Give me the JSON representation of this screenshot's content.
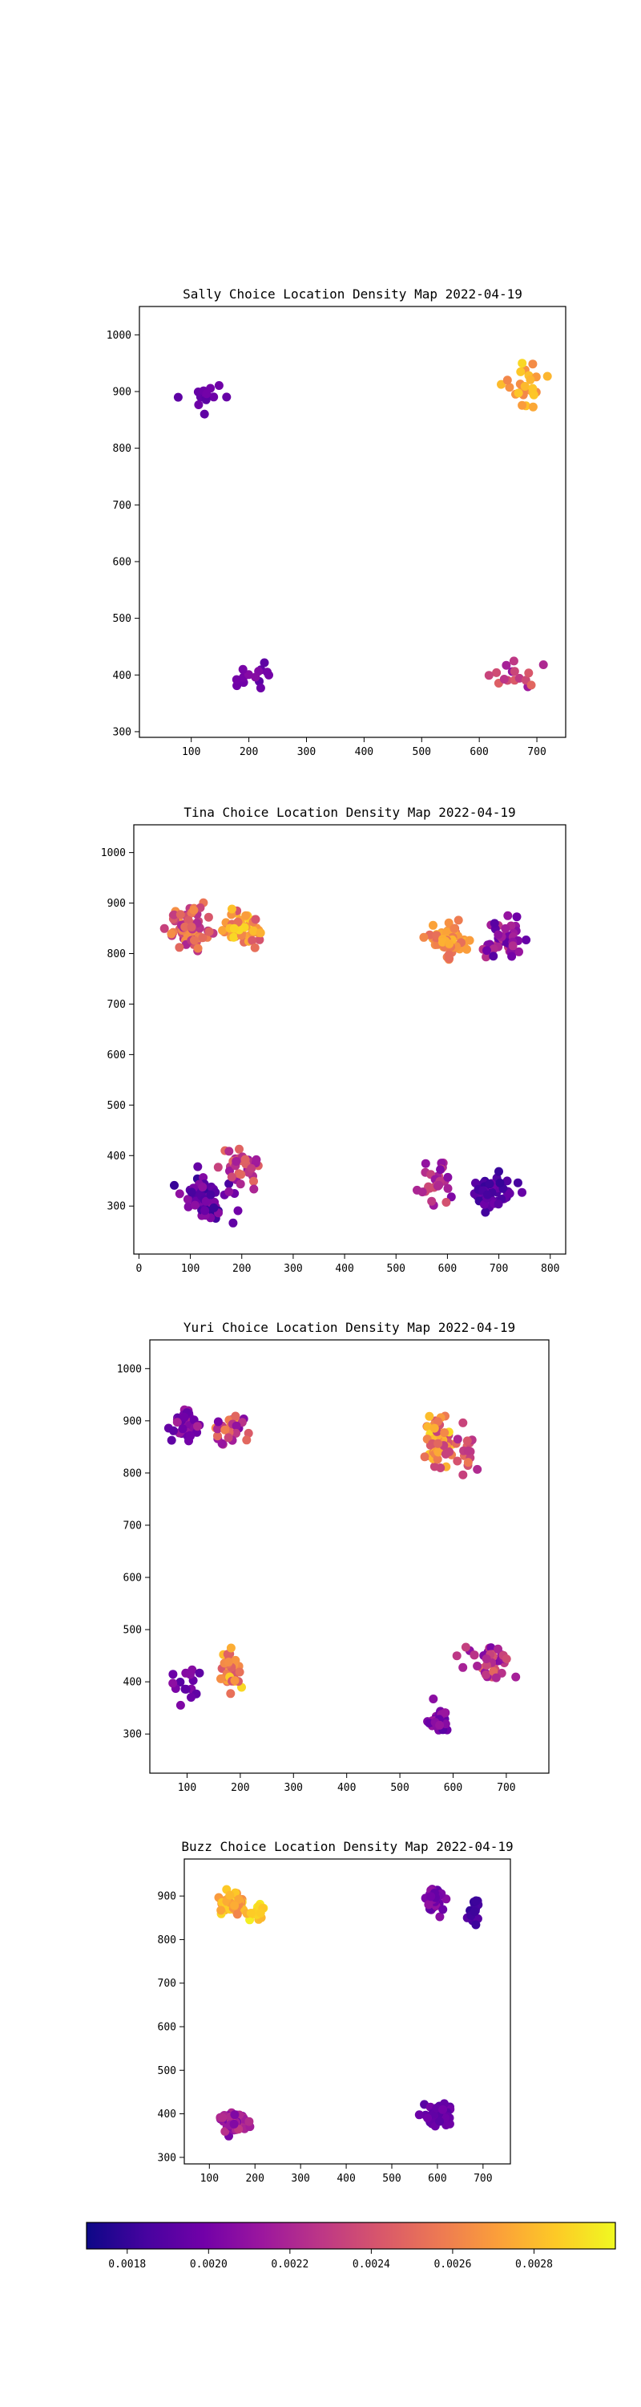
{
  "colors": {
    "colormap": "plasma",
    "stops": [
      "#0d0887",
      "#46039f",
      "#7201a8",
      "#9c179e",
      "#bd3786",
      "#d8576b",
      "#ed7953",
      "#fb9f3a",
      "#fdca26",
      "#f0f921"
    ]
  },
  "colorbar": {
    "range": [
      0.0017,
      0.003
    ],
    "ticks": [
      0.0018,
      0.002,
      0.0022,
      0.0024,
      0.0026,
      0.0028
    ],
    "tick_labels": [
      "0.0018",
      "0.0020",
      "0.0022",
      "0.0024",
      "0.0026",
      "0.0028"
    ]
  },
  "chart_data": [
    {
      "type": "scatter",
      "title": "Sally Choice Location Density Map 2022-04-19",
      "xlim": [
        10,
        750
      ],
      "ylim": [
        290,
        1050
      ],
      "xticks": [
        100,
        200,
        300,
        400,
        500,
        600,
        700
      ],
      "yticks": [
        300,
        400,
        500,
        600,
        700,
        800,
        900,
        1000
      ],
      "clusters": [
        {
          "cx": 120,
          "cy": 895,
          "sx": 45,
          "sy": 35,
          "n": 16,
          "c0": 0.0019,
          "c1": 0.002
        },
        {
          "cx": 680,
          "cy": 910,
          "sx": 35,
          "sy": 35,
          "n": 26,
          "c0": 0.0026,
          "c1": 0.0029
        },
        {
          "cx": 200,
          "cy": 395,
          "sx": 40,
          "sy": 30,
          "n": 14,
          "c0": 0.0019,
          "c1": 0.0021
        },
        {
          "cx": 670,
          "cy": 400,
          "sx": 40,
          "sy": 35,
          "n": 16,
          "c0": 0.0021,
          "c1": 0.0025
        }
      ]
    },
    {
      "type": "scatter",
      "title": "Tina Choice Location Density Map 2022-04-19",
      "xlim": [
        -10,
        830
      ],
      "ylim": [
        205,
        1055
      ],
      "xticks": [
        0,
        100,
        200,
        300,
        400,
        500,
        600,
        700,
        800
      ],
      "yticks": [
        300,
        400,
        500,
        600,
        700,
        800,
        900,
        1000
      ],
      "clusters": [
        {
          "cx": 100,
          "cy": 850,
          "sx": 40,
          "sy": 45,
          "n": 70,
          "c0": 0.0022,
          "c1": 0.0027
        },
        {
          "cx": 200,
          "cy": 850,
          "sx": 40,
          "sy": 40,
          "n": 50,
          "c0": 0.0024,
          "c1": 0.0029
        },
        {
          "cx": 600,
          "cy": 825,
          "sx": 40,
          "sy": 35,
          "n": 65,
          "c0": 0.0025,
          "c1": 0.0028
        },
        {
          "cx": 710,
          "cy": 830,
          "sx": 40,
          "sy": 40,
          "n": 45,
          "c0": 0.0019,
          "c1": 0.0023
        },
        {
          "cx": 130,
          "cy": 320,
          "sx": 50,
          "sy": 45,
          "n": 55,
          "c0": 0.0018,
          "c1": 0.0021
        },
        {
          "cx": 200,
          "cy": 380,
          "sx": 40,
          "sy": 45,
          "n": 35,
          "c0": 0.0021,
          "c1": 0.0025
        },
        {
          "cx": 580,
          "cy": 350,
          "sx": 40,
          "sy": 45,
          "n": 30,
          "c0": 0.002,
          "c1": 0.0024
        },
        {
          "cx": 690,
          "cy": 330,
          "sx": 45,
          "sy": 40,
          "n": 50,
          "c0": 0.0018,
          "c1": 0.002
        }
      ]
    },
    {
      "type": "scatter",
      "title": "Yuri Choice Location Density Map 2022-04-19",
      "xlim": [
        30,
        780
      ],
      "ylim": [
        225,
        1055
      ],
      "xticks": [
        100,
        200,
        300,
        400,
        500,
        600,
        700
      ],
      "yticks": [
        300,
        400,
        500,
        600,
        700,
        800,
        900,
        1000
      ],
      "clusters": [
        {
          "cx": 100,
          "cy": 890,
          "sx": 25,
          "sy": 40,
          "n": 35,
          "c0": 0.0019,
          "c1": 0.0022
        },
        {
          "cx": 180,
          "cy": 900,
          "sx": 30,
          "sy": 45,
          "n": 25,
          "c0": 0.002,
          "c1": 0.0027
        },
        {
          "cx": 570,
          "cy": 860,
          "sx": 30,
          "sy": 60,
          "n": 50,
          "c0": 0.0023,
          "c1": 0.0029
        },
        {
          "cx": 610,
          "cy": 840,
          "sx": 30,
          "sy": 45,
          "n": 20,
          "c0": 0.0022,
          "c1": 0.0026
        },
        {
          "cx": 180,
          "cy": 420,
          "sx": 25,
          "sy": 35,
          "n": 45,
          "c0": 0.0024,
          "c1": 0.0029
        },
        {
          "cx": 100,
          "cy": 400,
          "sx": 25,
          "sy": 40,
          "n": 15,
          "c0": 0.0019,
          "c1": 0.0021
        },
        {
          "cx": 570,
          "cy": 330,
          "sx": 25,
          "sy": 35,
          "n": 25,
          "c0": 0.0019,
          "c1": 0.0022
        },
        {
          "cx": 670,
          "cy": 440,
          "sx": 50,
          "sy": 30,
          "n": 40,
          "c0": 0.002,
          "c1": 0.0025
        }
      ]
    },
    {
      "type": "scatter",
      "title": "Buzz Choice Location Density Map 2022-04-19",
      "xlim": [
        45,
        760
      ],
      "ylim": [
        285,
        985
      ],
      "xticks": [
        100,
        200,
        300,
        400,
        500,
        600,
        700
      ],
      "yticks": [
        300,
        400,
        500,
        600,
        700,
        800,
        900
      ],
      "clusters": [
        {
          "cx": 150,
          "cy": 885,
          "sx": 30,
          "sy": 25,
          "n": 60,
          "c0": 0.0026,
          "c1": 0.0029
        },
        {
          "cx": 205,
          "cy": 860,
          "sx": 20,
          "sy": 35,
          "n": 15,
          "c0": 0.0027,
          "c1": 0.003
        },
        {
          "cx": 595,
          "cy": 890,
          "sx": 20,
          "sy": 30,
          "n": 35,
          "c0": 0.0019,
          "c1": 0.0021
        },
        {
          "cx": 680,
          "cy": 860,
          "sx": 25,
          "sy": 50,
          "n": 15,
          "c0": 0.0018,
          "c1": 0.0019
        },
        {
          "cx": 155,
          "cy": 380,
          "sx": 30,
          "sy": 25,
          "n": 60,
          "c0": 0.002,
          "c1": 0.0023
        },
        {
          "cx": 600,
          "cy": 400,
          "sx": 30,
          "sy": 25,
          "n": 50,
          "c0": 0.0019,
          "c1": 0.002
        }
      ]
    }
  ]
}
